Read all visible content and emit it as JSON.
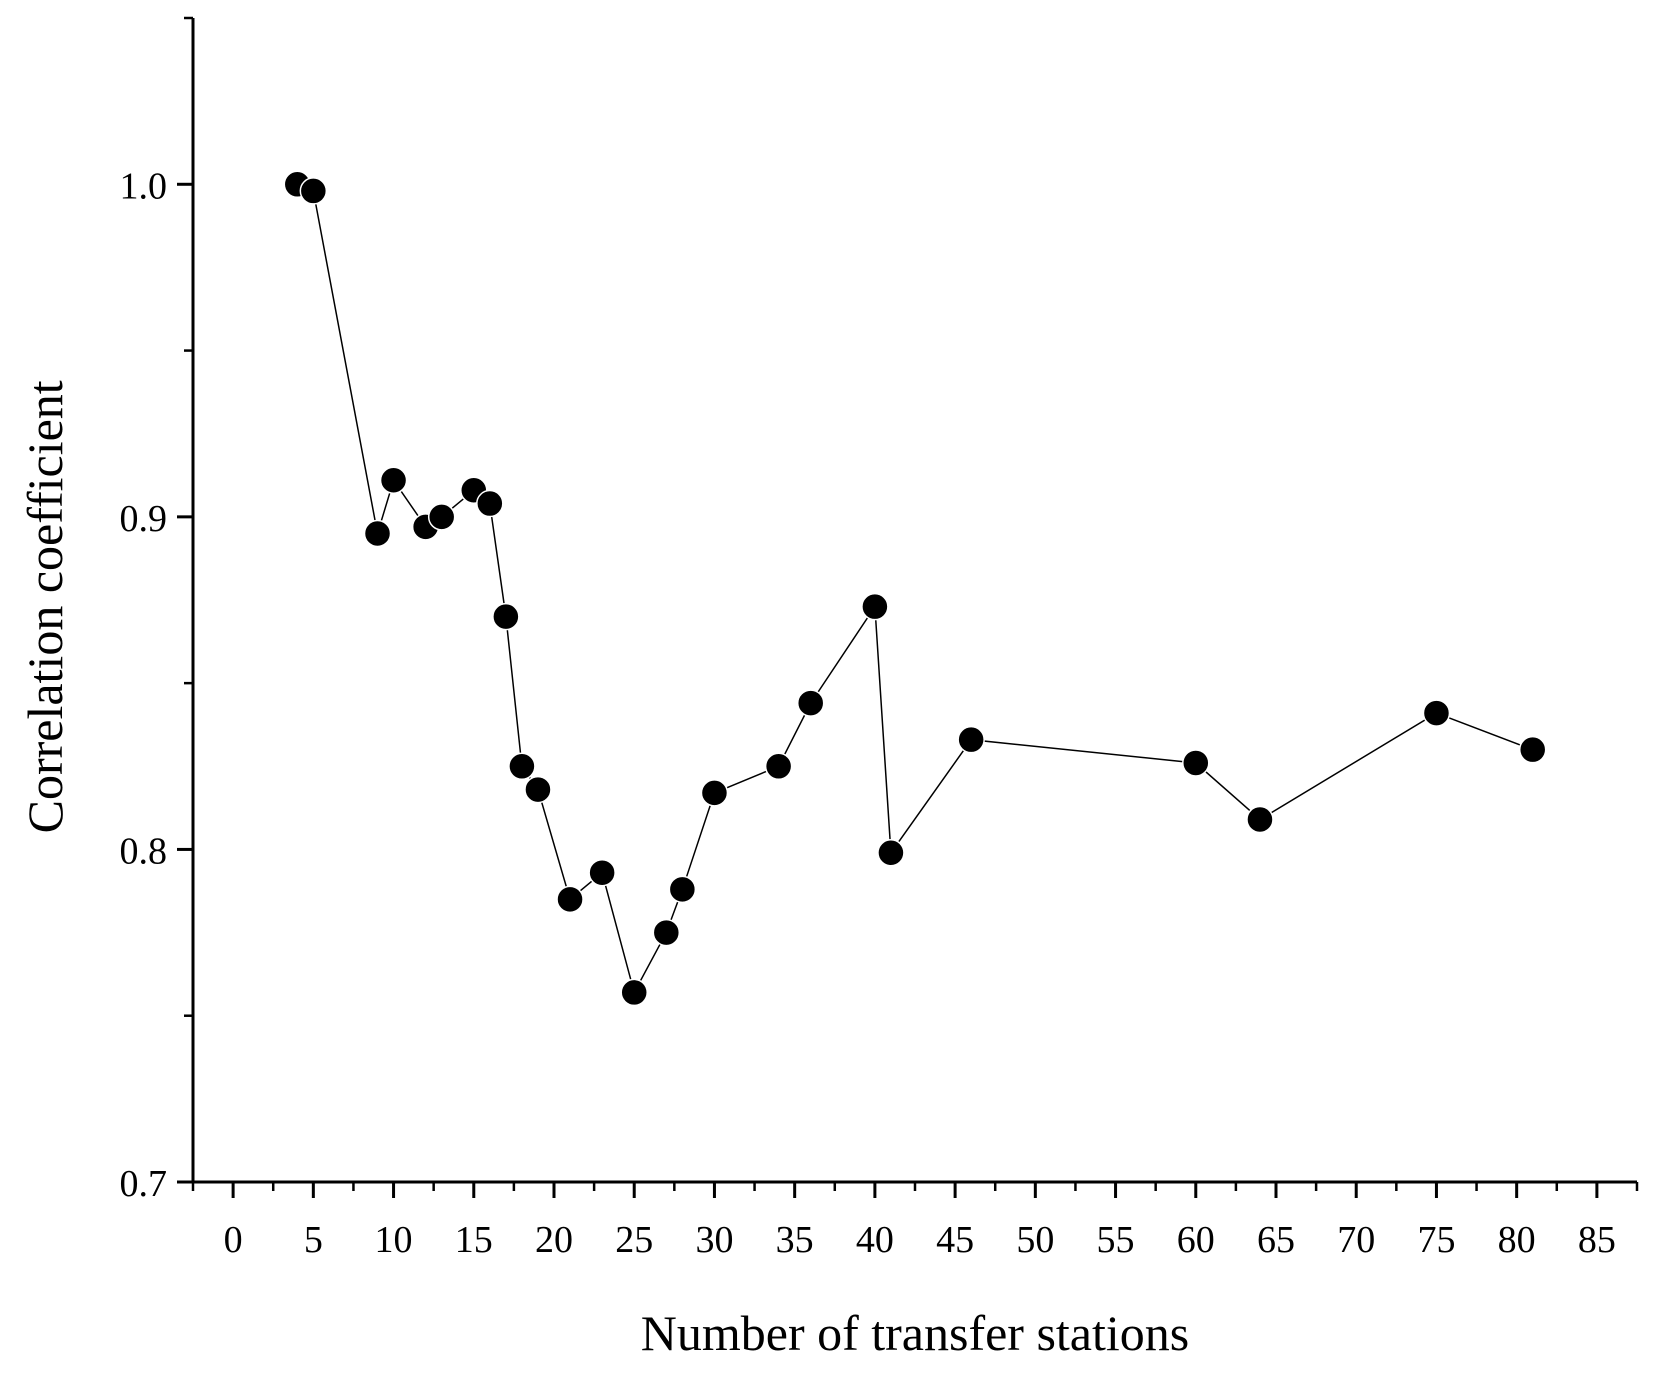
{
  "chart_data": {
    "type": "line",
    "xlabel": "Number of transfer stations",
    "ylabel": "Correlation coefficient",
    "xlim": [
      -2.5,
      87.5
    ],
    "ylim": [
      0.7,
      1.05
    ],
    "x_ticks": [
      0,
      5,
      10,
      15,
      20,
      25,
      30,
      35,
      40,
      45,
      50,
      55,
      60,
      65,
      70,
      75,
      80,
      85
    ],
    "x_tick_labels": [
      "0",
      "5",
      "10",
      "15",
      "20",
      "25",
      "30",
      "35",
      "40",
      "45",
      "50",
      "55",
      "60",
      "65",
      "70",
      "75",
      "80",
      "85"
    ],
    "y_ticks": [
      0.7,
      0.8,
      0.9,
      1.0
    ],
    "y_tick_labels": [
      "0.7",
      "0.8",
      "0.9",
      "1.0"
    ],
    "y_minor_ticks": [
      0.75,
      0.85,
      0.95,
      1.05
    ],
    "grid": false,
    "series": [
      {
        "marker": "circle",
        "color": "#000000",
        "x": [
          4,
          5,
          9,
          10,
          12,
          13,
          15,
          16,
          17,
          18,
          19,
          21,
          23,
          25,
          27,
          28,
          30,
          34,
          36,
          40,
          41,
          46,
          60,
          64,
          75,
          81
        ],
        "y": [
          1.0,
          0.998,
          0.895,
          0.911,
          0.897,
          0.9,
          0.908,
          0.904,
          0.87,
          0.825,
          0.818,
          0.785,
          0.793,
          0.757,
          0.775,
          0.788,
          0.817,
          0.825,
          0.844,
          0.873,
          0.799,
          0.833,
          0.826,
          0.809,
          0.841,
          0.83
        ]
      }
    ]
  },
  "colors": {
    "axis": "#000000",
    "marker": "#000000",
    "line": "#000000",
    "background": "#ffffff"
  }
}
